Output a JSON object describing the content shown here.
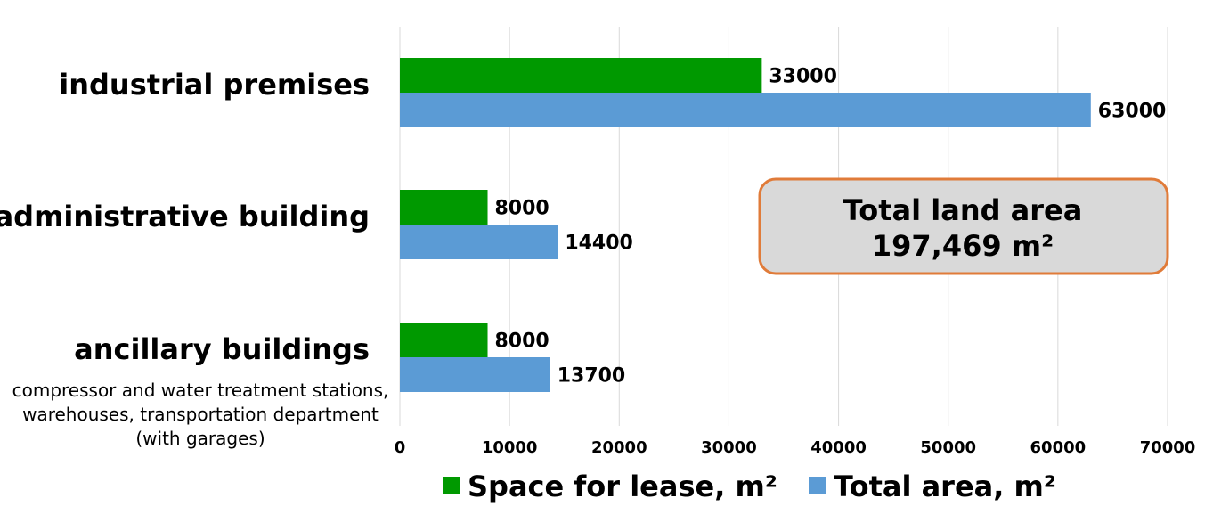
{
  "chart_data": {
    "type": "bar",
    "orientation": "horizontal",
    "categories": [
      {
        "label": "industrial premises",
        "sublabel": []
      },
      {
        "label": "administrative building",
        "sublabel": []
      },
      {
        "label": "ancillary buildings",
        "sublabel": [
          "compressor and water treatment stations,",
          "warehouses, transportation department",
          "(with garages)"
        ]
      }
    ],
    "series": [
      {
        "name": "Space for lease, m²",
        "color": "#009900",
        "values": [
          33000,
          8000,
          8000
        ]
      },
      {
        "name": "Total area, m²",
        "color": "#5b9bd5",
        "values": [
          63000,
          14400,
          13700
        ]
      }
    ],
    "xlim": [
      0,
      70000
    ],
    "xticks": [
      "0",
      "10000",
      "20000",
      "30000",
      "40000",
      "50000",
      "60000",
      "70000"
    ],
    "grid": true,
    "legend_position": "bottom",
    "data_labels": true,
    "annotation": {
      "lines": [
        "Total land area",
        "197,469 m²"
      ],
      "border_color": "#e07b39",
      "fill_color": "#d9d9d9"
    }
  }
}
